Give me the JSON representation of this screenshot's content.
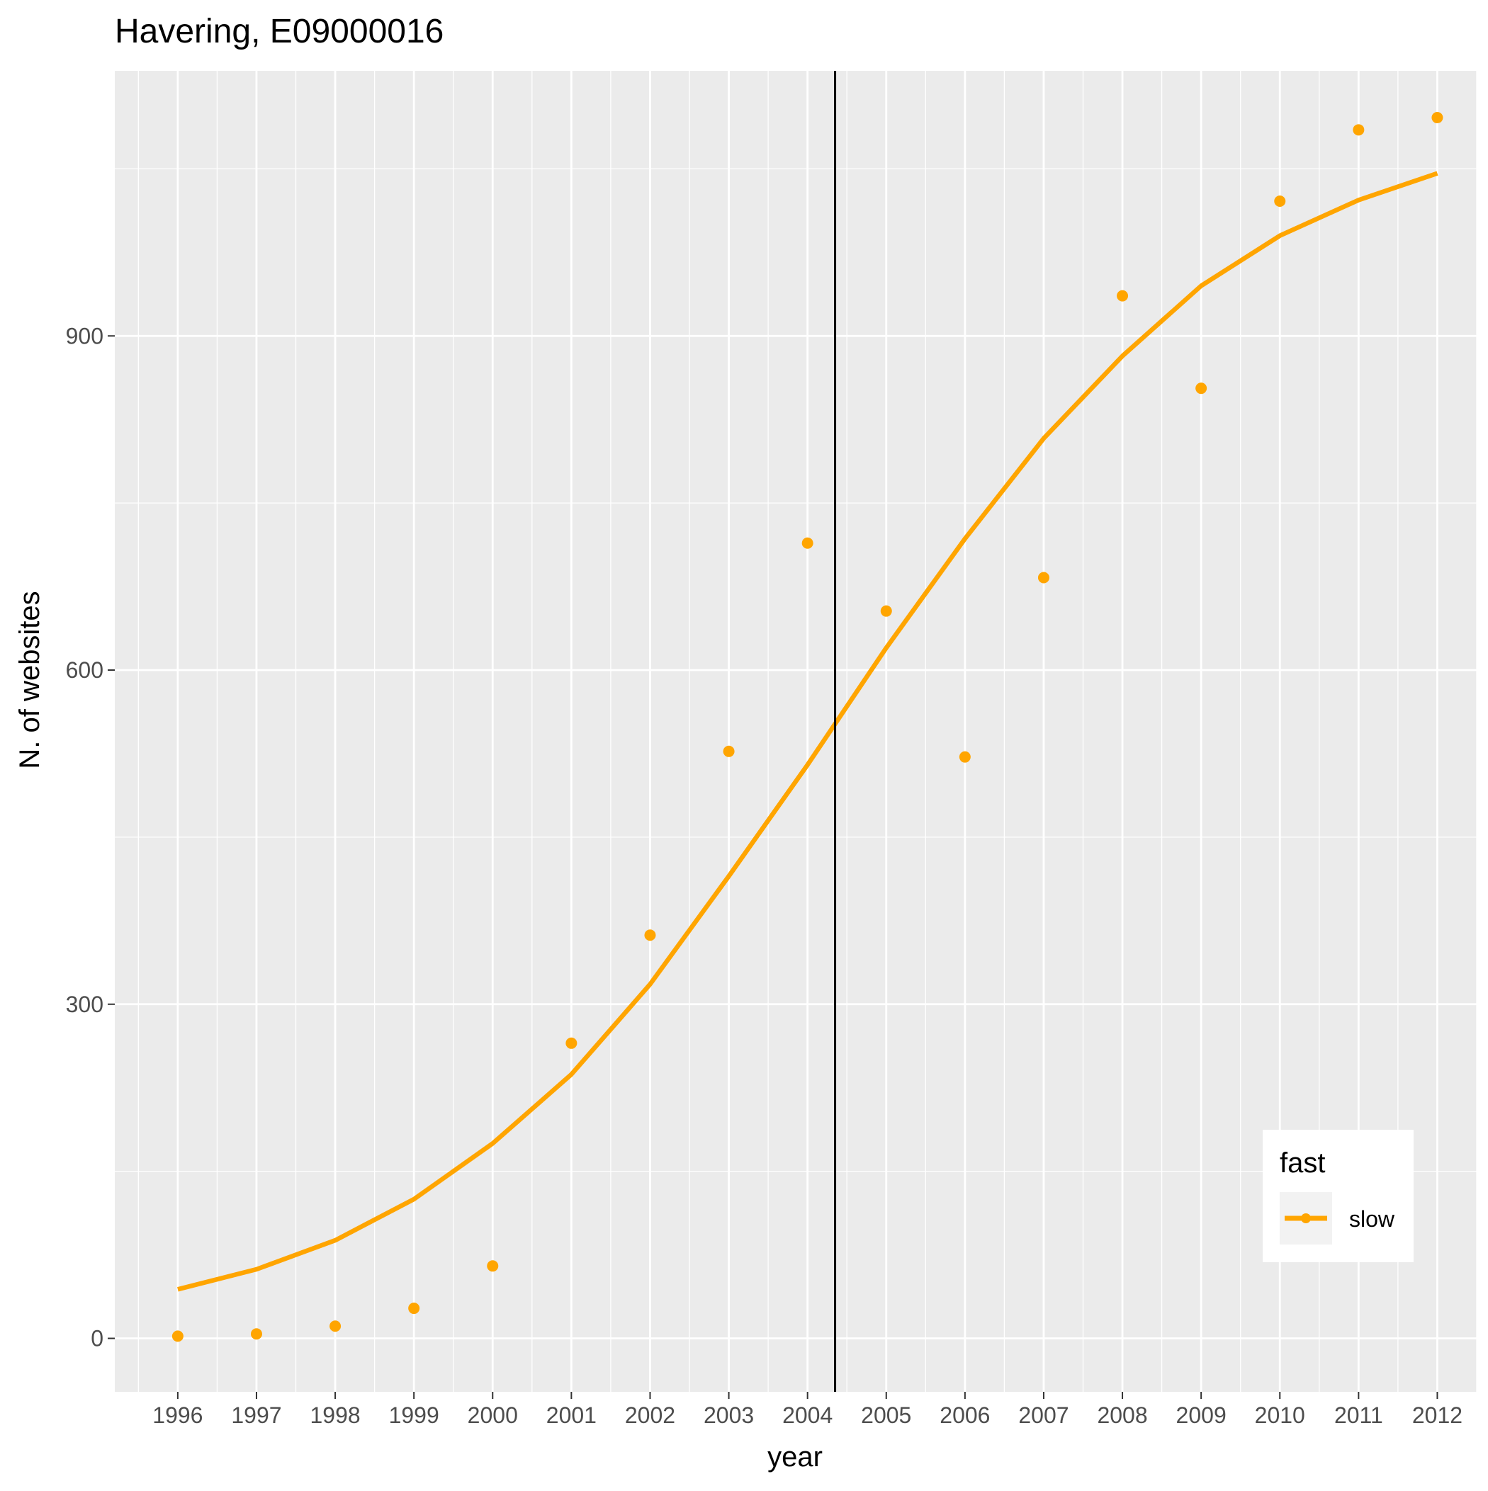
{
  "chart_data": {
    "type": "scatter",
    "title": "Havering, E09000016",
    "xlabel": "year",
    "ylabel": "N. of websites",
    "x": [
      1996,
      1997,
      1998,
      1999,
      2000,
      2001,
      2002,
      2003,
      2004,
      2005,
      2006,
      2007,
      2008,
      2009,
      2010,
      2011,
      2012
    ],
    "x_tick_labels": [
      "1996",
      "1997",
      "1998",
      "1999",
      "2000",
      "2001",
      "2002",
      "2003",
      "2004",
      "2005",
      "2006",
      "2007",
      "2008",
      "2009",
      "2010",
      "2011",
      "2012"
    ],
    "y_ticks": [
      0,
      300,
      600,
      900
    ],
    "y_tick_labels": [
      "0",
      "300",
      "600",
      "900"
    ],
    "xlim": [
      1995.2,
      2012.5
    ],
    "ylim": [
      -48,
      1138
    ],
    "grid": true,
    "series": [
      {
        "name": "slow",
        "points": [
          2,
          4,
          11,
          27,
          65,
          265,
          362,
          527,
          714,
          653,
          522,
          683,
          936,
          853,
          1021,
          1085,
          1096
        ],
        "trend": [
          44,
          62,
          88,
          125,
          175,
          237,
          318,
          415,
          515,
          620,
          718,
          808,
          882,
          945,
          990,
          1022,
          1046
        ],
        "color": "#FFA500"
      }
    ],
    "vline_x": 2004.35,
    "vline_color": "#000000",
    "legend": {
      "title": "fast",
      "position": "bottom-right",
      "items": [
        "slow"
      ]
    },
    "panel_background": "#EBEBEB",
    "grid_color": "#FFFFFF"
  }
}
